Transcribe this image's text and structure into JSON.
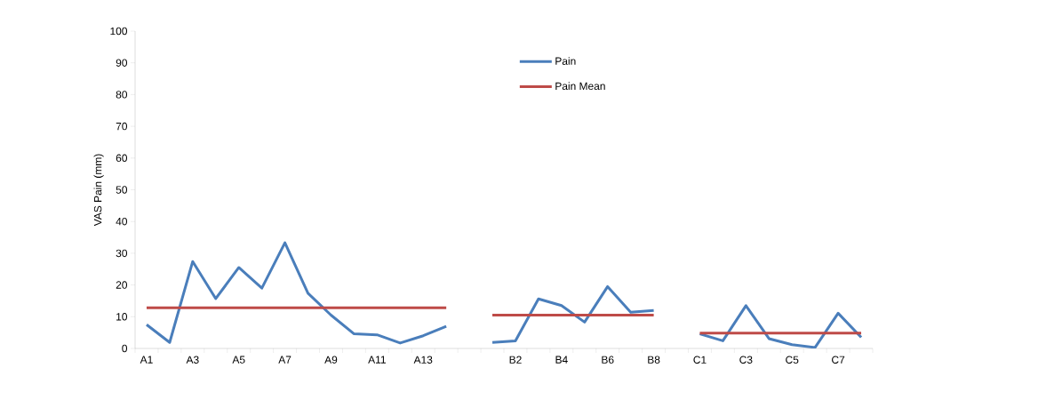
{
  "chart_data": {
    "type": "line",
    "ylabel": "VAS Pain (mm)",
    "categories": [
      "A1",
      null,
      "A3",
      null,
      "A5",
      null,
      "A7",
      null,
      "A9",
      null,
      "A11",
      null,
      "A13",
      null,
      null,
      null,
      "B2",
      null,
      "B4",
      null,
      "B6",
      null,
      "B8",
      null,
      "C1",
      null,
      "C3",
      null,
      "C5",
      null,
      "C7",
      null
    ],
    "series": [
      {
        "name": "Pain",
        "color": "#4a7ebb",
        "values": [
          7.5,
          1.9,
          27.4,
          15.7,
          25.5,
          19,
          33.3,
          17.4,
          10.5,
          4.6,
          4.3,
          1.7,
          4,
          7,
          null,
          1.9,
          2.4,
          15.6,
          13.5,
          8.3,
          19.5,
          11.4,
          12,
          null,
          4.6,
          2.4,
          13.5,
          3.1,
          1.2,
          0.3,
          11.1,
          3.5
        ]
      },
      {
        "name": "Pain Mean",
        "color": "#be4b48",
        "values": [
          12.8,
          12.8,
          12.8,
          12.8,
          12.8,
          12.8,
          12.8,
          12.8,
          12.8,
          12.8,
          12.8,
          12.8,
          12.8,
          12.8,
          null,
          10.5,
          10.5,
          10.5,
          10.5,
          10.5,
          10.5,
          10.5,
          10.5,
          null,
          4.8,
          4.8,
          4.8,
          4.8,
          4.8,
          4.8,
          4.8,
          4.8
        ]
      }
    ],
    "ylim": [
      0,
      100
    ],
    "yticks": [
      0,
      10,
      20,
      30,
      40,
      50,
      60,
      70,
      80,
      90,
      100
    ],
    "grid": false,
    "legend": "top",
    "marker": "none",
    "line_style": "solid"
  }
}
